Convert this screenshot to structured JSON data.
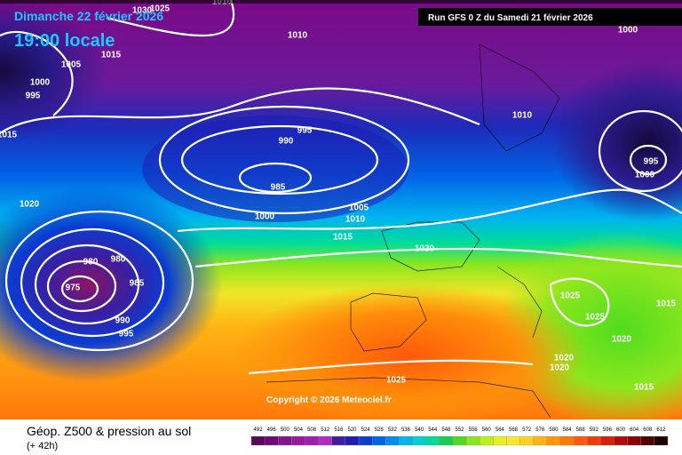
{
  "header": {
    "date": "Dimanche 22 février 2026",
    "time": "19:00 locale",
    "run": "Run GFS 0 Z du Samedi 21 février 2026"
  },
  "copyright": "Copyright © 2026 Meteociel.fr",
  "caption": {
    "title": "Géop. Z500 & pression au sol",
    "lead": "(+ 42h)"
  },
  "isobar_labels": [
    "1010",
    "1025",
    "1030",
    "1010",
    "1015",
    "1005",
    "1000",
    "995",
    "1015",
    "995",
    "990",
    "985",
    "1000",
    "1010",
    "995",
    "1000",
    "1020",
    "1000",
    "1005",
    "1010",
    "1015",
    "1020",
    "980",
    "980",
    "975",
    "985",
    "990",
    "995",
    "1025",
    "1025",
    "1015",
    "1020",
    "1020",
    "1020",
    "1015",
    "1025"
  ],
  "legend": {
    "values": [
      492,
      496,
      500,
      504,
      508,
      512,
      516,
      520,
      524,
      528,
      532,
      536,
      540,
      544,
      548,
      552,
      556,
      560,
      564,
      568,
      572,
      576,
      580,
      584,
      588,
      592,
      596,
      600,
      604,
      608,
      612
    ],
    "colors": [
      "#5a0a5a",
      "#6e0a78",
      "#82148c",
      "#9619a0",
      "#a01eb4",
      "#b428c8",
      "#3c1ea0",
      "#1e1eb4",
      "#0a3cd2",
      "#0064e6",
      "#008cf0",
      "#00b4f0",
      "#00d2d2",
      "#00dc96",
      "#14d250",
      "#50dc1e",
      "#8ce61e",
      "#bef01e",
      "#e6f01e",
      "#fae632",
      "#ffd21e",
      "#ffb414",
      "#ff960a",
      "#ff780a",
      "#ff5a0a",
      "#f03c0a",
      "#dc1e0a",
      "#b40a0a",
      "#8c0000",
      "#500000",
      "#1e0000"
    ]
  }
}
